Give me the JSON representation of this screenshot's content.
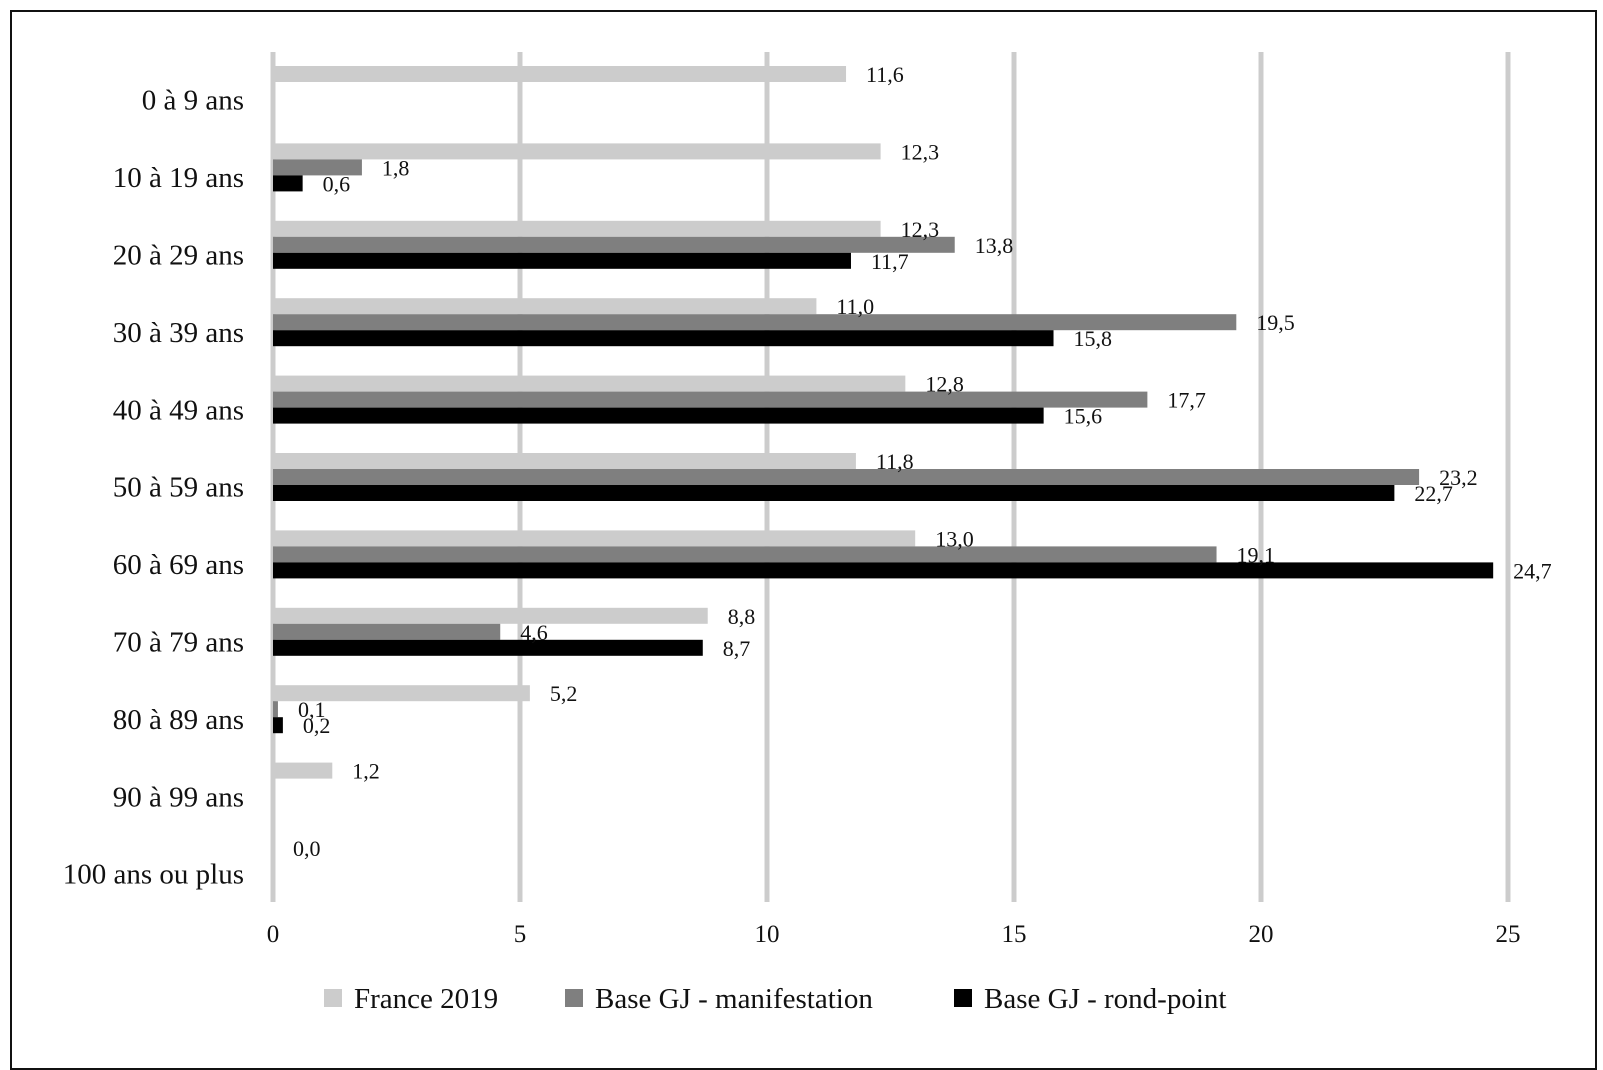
{
  "chart_data": {
    "type": "bar",
    "orientation": "horizontal",
    "categories": [
      "0 à 9 ans",
      "10 à 19 ans",
      "20 à 29 ans",
      "30 à 39 ans",
      "40 à 49 ans",
      "50 à 59 ans",
      "60 à 69 ans",
      "70 à 79 ans",
      "80 à 89 ans",
      "90 à 99 ans",
      "100 ans ou plus"
    ],
    "series": [
      {
        "name": "France 2019",
        "color": "#cccccc",
        "values": [
          11.6,
          12.3,
          12.3,
          11.0,
          12.8,
          11.8,
          13.0,
          8.8,
          5.2,
          1.2,
          0.0
        ],
        "labels": [
          "11,6",
          "12,3",
          "12,3",
          "11,0",
          "12,8",
          "11,8",
          "13,0",
          "8,8",
          "5,2",
          "1,2",
          "0,0"
        ]
      },
      {
        "name": "Base GJ - manifestation",
        "color": "#7f7f7f",
        "values": [
          null,
          1.8,
          13.8,
          19.5,
          17.7,
          23.2,
          19.1,
          4.6,
          0.1,
          null,
          null
        ],
        "labels": [
          null,
          "1,8",
          "13,8",
          "19,5",
          "17,7",
          "23,2",
          "19,1",
          "4,6",
          "0,1",
          null,
          null
        ]
      },
      {
        "name": "Base GJ - rond-point",
        "color": "#000000",
        "values": [
          null,
          0.6,
          11.7,
          15.8,
          15.6,
          22.7,
          24.7,
          8.7,
          0.2,
          null,
          null
        ],
        "labels": [
          null,
          "0,6",
          "11,7",
          "15,8",
          "15,6",
          "22,7",
          "24,7",
          "8,7",
          "0,2",
          null,
          null
        ]
      }
    ],
    "xlim": [
      0,
      25
    ],
    "xticks": [
      0,
      5,
      10,
      15,
      20,
      25
    ],
    "title": "",
    "xlabel": "",
    "ylabel": "",
    "grid": true,
    "gridColor": "#cccccc",
    "legend": "bottom"
  }
}
